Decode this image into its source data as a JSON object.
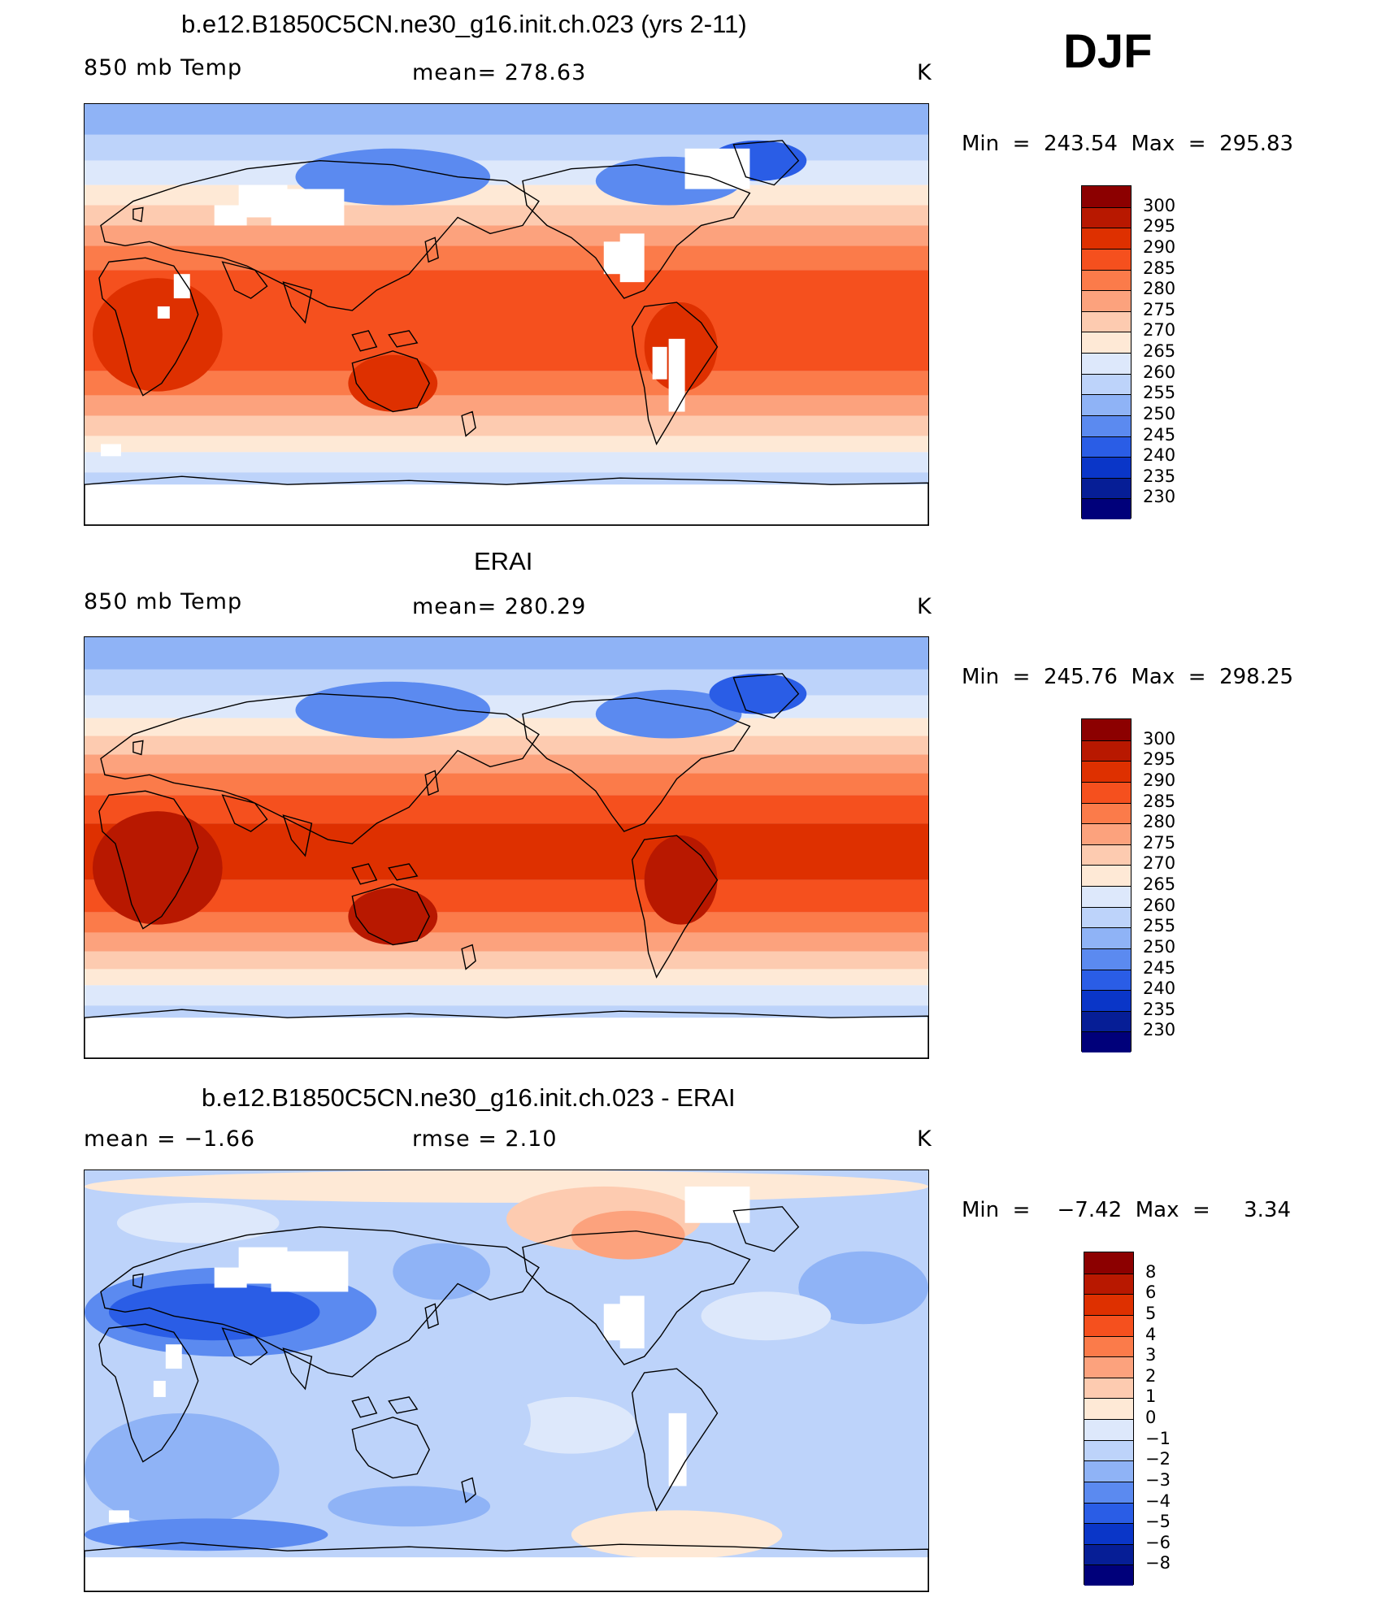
{
  "season": "DJF",
  "panels": [
    {
      "title": "b.e12.B1850C5CN.ne30_g16.init.ch.023 (yrs 2-11)",
      "left_label": "850 mb Temp",
      "center_label": "mean=  278.63",
      "units": "K",
      "minmax": "Min  =  243.54  Max  =  295.83",
      "colorbar": {
        "labels": [
          "300",
          "295",
          "290",
          "285",
          "280",
          "275",
          "270",
          "265",
          "260",
          "255",
          "250",
          "245",
          "240",
          "235",
          "230"
        ],
        "colors": [
          "#8c0000",
          "#b81800",
          "#de3000",
          "#f5501e",
          "#fb7b4a",
          "#fca27d",
          "#fdcbb0",
          "#fee9d6",
          "#dde8fb",
          "#bdd3fa",
          "#8fb3f6",
          "#5b8af0",
          "#2a5de6",
          "#0a36c8",
          "#061e96",
          "#00007a"
        ]
      },
      "missing_data": true
    },
    {
      "title": "ERAI",
      "left_label": "850 mb Temp",
      "center_label": "mean=  280.29",
      "units": "K",
      "minmax": "Min  =  245.76  Max  =  298.25",
      "colorbar": {
        "labels": [
          "300",
          "295",
          "290",
          "285",
          "280",
          "275",
          "270",
          "265",
          "260",
          "255",
          "250",
          "245",
          "240",
          "235",
          "230"
        ],
        "colors": [
          "#8c0000",
          "#b81800",
          "#de3000",
          "#f5501e",
          "#fb7b4a",
          "#fca27d",
          "#fdcbb0",
          "#fee9d6",
          "#dde8fb",
          "#bdd3fa",
          "#8fb3f6",
          "#5b8af0",
          "#2a5de6",
          "#0a36c8",
          "#061e96",
          "#00007a"
        ]
      },
      "missing_data": false
    },
    {
      "title": "b.e12.B1850C5CN.ne30_g16.init.ch.023 - ERAI",
      "left_label": "mean  =    −1.66",
      "center_label": "rmse  =     2.10",
      "units": "K",
      "minmax": "Min  =    −7.42  Max  =     3.34",
      "colorbar": {
        "labels": [
          "8",
          "6",
          "5",
          "4",
          "3",
          "2",
          "1",
          "0",
          "−1",
          "−2",
          "−3",
          "−4",
          "−5",
          "−6",
          "−8"
        ],
        "colors": [
          "#8c0000",
          "#b81800",
          "#de3000",
          "#f5501e",
          "#fb7b4a",
          "#fca27d",
          "#fdcbb0",
          "#fee9d6",
          "#dde8fb",
          "#bdd3fa",
          "#8fb3f6",
          "#5b8af0",
          "#2a5de6",
          "#0a36c8",
          "#061e96",
          "#00007a"
        ]
      },
      "missing_data": true
    }
  ]
}
